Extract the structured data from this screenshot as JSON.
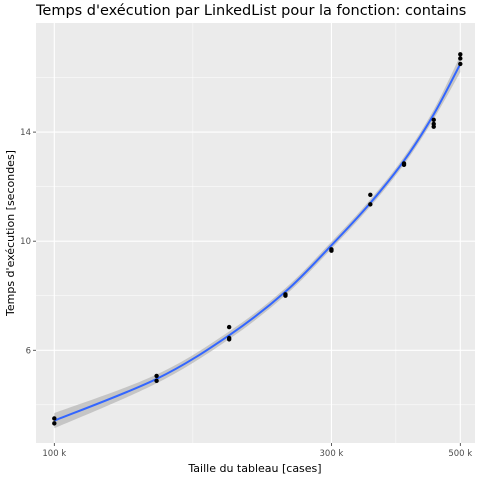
{
  "chart_data": {
    "type": "scatter",
    "title": "Temps d'exécution par LinkedList pour la fonction: contains",
    "xlabel": "Taille du tableau [cases]",
    "ylabel": "Temps d'exécution [secondes]",
    "x_scale": "log",
    "xlim": [
      93000,
      530000
    ],
    "ylim": [
      2.6,
      18.0
    ],
    "x_ticks": [
      {
        "value": 100000,
        "label": "100 k"
      },
      {
        "value": 300000,
        "label": "300 k"
      },
      {
        "value": 500000,
        "label": "500 k"
      }
    ],
    "y_ticks": [
      {
        "value": 6,
        "label": "6"
      },
      {
        "value": 10,
        "label": "10"
      },
      {
        "value": 14,
        "label": "14"
      }
    ],
    "grid": true,
    "points": [
      {
        "x": 100000,
        "y": 3.5
      },
      {
        "x": 100000,
        "y": 3.32
      },
      {
        "x": 150000,
        "y": 5.06
      },
      {
        "x": 150000,
        "y": 4.88
      },
      {
        "x": 200000,
        "y": 6.85
      },
      {
        "x": 200000,
        "y": 6.45
      },
      {
        "x": 200000,
        "y": 6.4
      },
      {
        "x": 250000,
        "y": 8.05
      },
      {
        "x": 250000,
        "y": 8.0
      },
      {
        "x": 300000,
        "y": 9.7
      },
      {
        "x": 300000,
        "y": 9.65
      },
      {
        "x": 350000,
        "y": 11.7
      },
      {
        "x": 350000,
        "y": 11.35
      },
      {
        "x": 400000,
        "y": 12.85
      },
      {
        "x": 400000,
        "y": 12.8
      },
      {
        "x": 450000,
        "y": 14.45
      },
      {
        "x": 450000,
        "y": 14.3
      },
      {
        "x": 450000,
        "y": 14.2
      },
      {
        "x": 500000,
        "y": 16.85
      },
      {
        "x": 500000,
        "y": 16.7
      },
      {
        "x": 500000,
        "y": 16.5
      }
    ],
    "fit": {
      "method": "smooth",
      "x": [
        100000,
        150000,
        200000,
        250000,
        300000,
        350000,
        400000,
        450000,
        500000
      ],
      "y": [
        3.42,
        4.95,
        6.55,
        8.15,
        9.85,
        11.4,
        12.95,
        14.65,
        16.5
      ],
      "se_band": [
        0.28,
        0.16,
        0.14,
        0.13,
        0.13,
        0.13,
        0.14,
        0.17,
        0.3
      ],
      "line_color": "#3366ff",
      "band_color": "#b8b8b8"
    },
    "point_color": "#000000",
    "panel_background": "#ebebeb",
    "grid_color": "#ffffff"
  }
}
